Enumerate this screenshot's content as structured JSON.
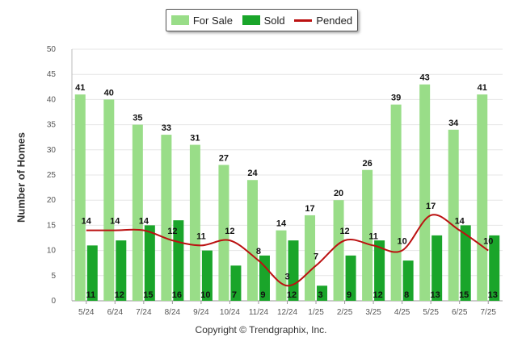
{
  "chart_data": {
    "type": "bar",
    "categories": [
      "5/24",
      "6/24",
      "7/24",
      "8/24",
      "9/24",
      "10/24",
      "11/24",
      "12/24",
      "1/25",
      "2/25",
      "3/25",
      "4/25",
      "5/25",
      "6/25",
      "7/25"
    ],
    "series": [
      {
        "name": "For Sale",
        "kind": "bar",
        "color": "#99dd88",
        "values": [
          41,
          40,
          35,
          33,
          31,
          27,
          24,
          14,
          17,
          20,
          26,
          39,
          43,
          34,
          41
        ]
      },
      {
        "name": "Sold",
        "kind": "bar",
        "color": "#1aa52a",
        "values": [
          11,
          12,
          15,
          16,
          10,
          7,
          9,
          12,
          3,
          9,
          12,
          8,
          13,
          15,
          13
        ]
      },
      {
        "name": "Pended",
        "kind": "line",
        "color": "#bb1111",
        "values": [
          14,
          14,
          14,
          12,
          11,
          12,
          8,
          3,
          7,
          12,
          11,
          10,
          17,
          14,
          10
        ]
      }
    ],
    "ylabel": "Number of Homes",
    "ylim": [
      0,
      50
    ],
    "yticks": [
      0,
      5,
      10,
      15,
      20,
      25,
      30,
      35,
      40,
      45,
      50
    ],
    "grid": true,
    "legend_position": "top-center"
  },
  "copyright": "Copyright © Trendgraphix, Inc."
}
